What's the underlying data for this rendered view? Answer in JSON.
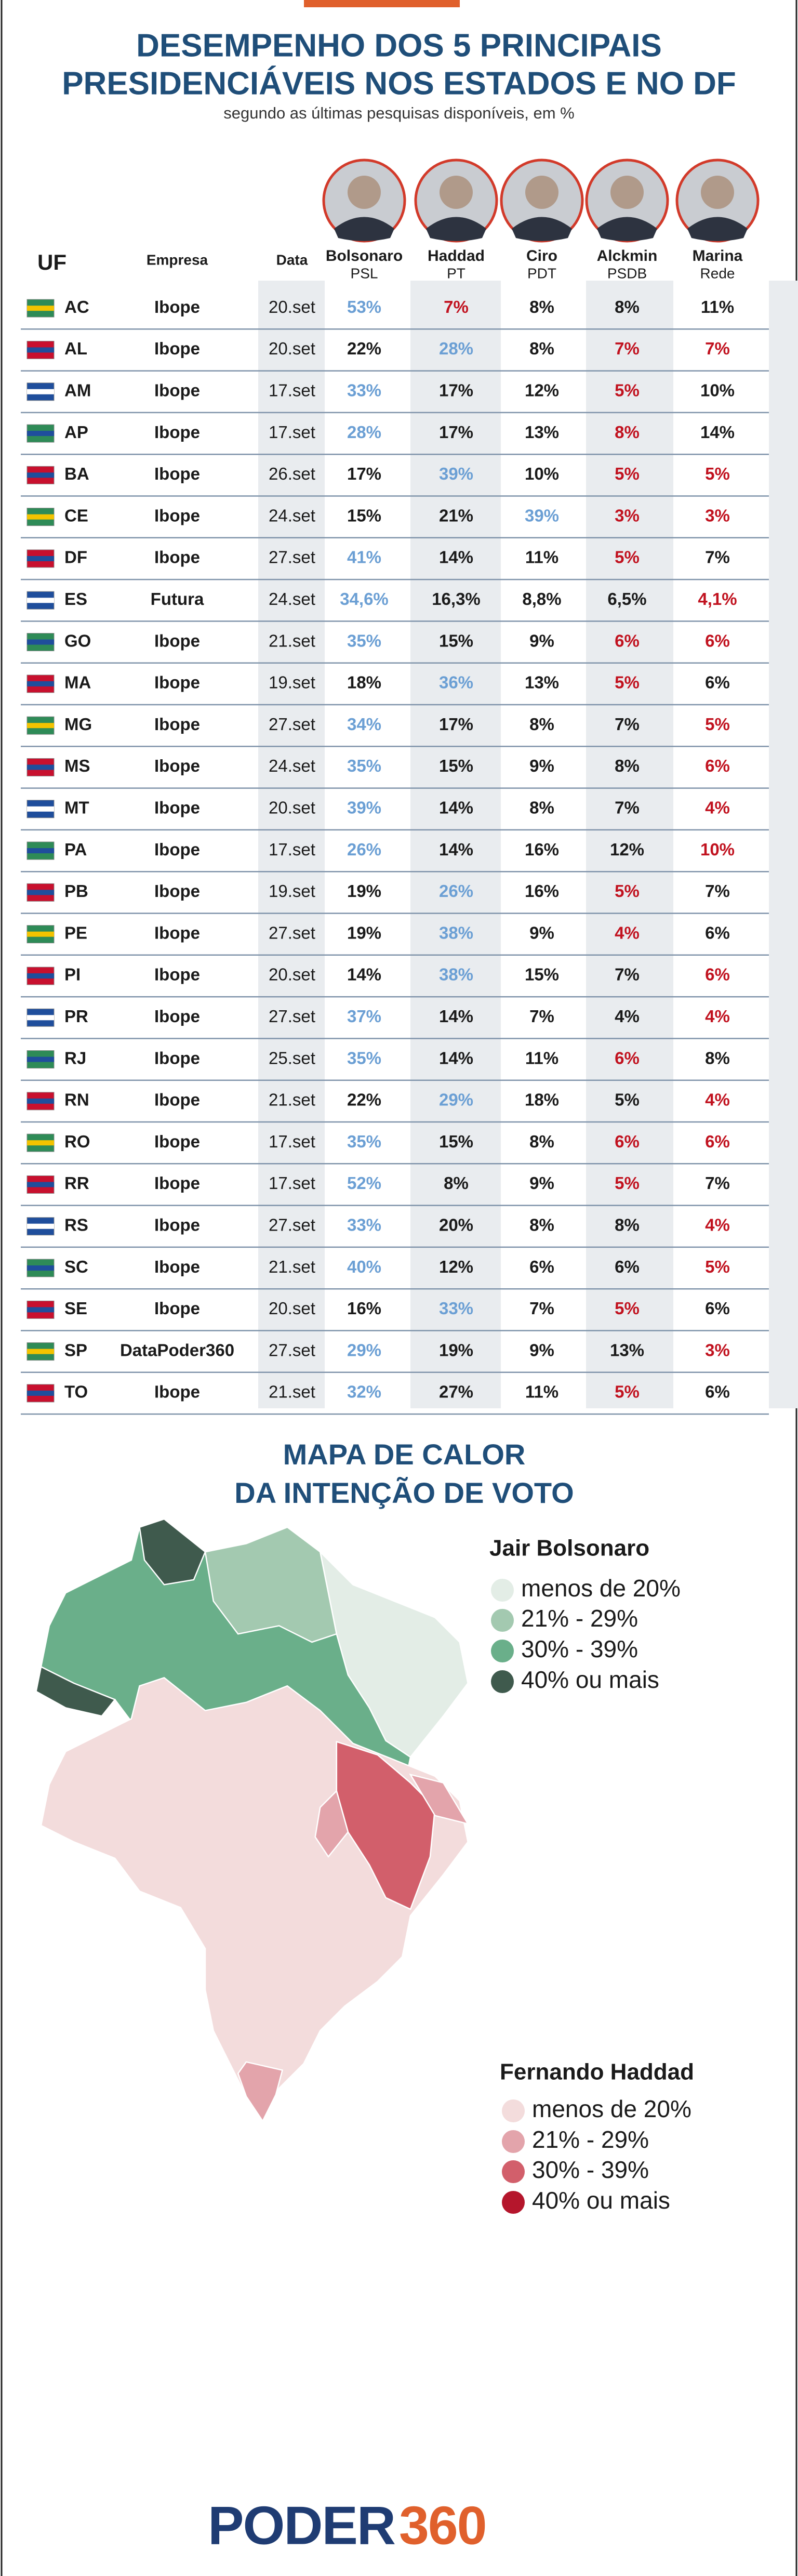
{
  "header": {
    "title_lines": [
      "DESEMPENHO DOS 5 PRINCIPAIS",
      "PRESIDENCIÁVEIS NOS ESTADOS E NO DF"
    ],
    "subtitle": "segundo as últimas pesquisas disponíveis, em %"
  },
  "table": {
    "columns": [
      "UF",
      "Empresa",
      "Data"
    ],
    "candidates": [
      {
        "name": "Bolsonaro",
        "party": "PSL"
      },
      {
        "name": "Haddad",
        "party": "PT"
      },
      {
        "name": "Ciro",
        "party": "PDT"
      },
      {
        "name": "Alckmin",
        "party": "PSDB"
      },
      {
        "name": "Marina",
        "party": "Rede"
      }
    ],
    "tone_colors": {
      "lead": "#6b9fd4",
      "low": "#c1121f",
      "base": "#1a1a1a"
    },
    "rows": [
      {
        "uf": "AC",
        "empresa": "Ibope",
        "data": "20.set",
        "values": [
          "53%",
          "7%",
          "8%",
          "8%",
          "11%"
        ],
        "lead": 0,
        "low": [
          1
        ]
      },
      {
        "uf": "AL",
        "empresa": "Ibope",
        "data": "20.set",
        "values": [
          "22%",
          "28%",
          "8%",
          "7%",
          "7%"
        ],
        "lead": 1,
        "low": [
          3,
          4
        ]
      },
      {
        "uf": "AM",
        "empresa": "Ibope",
        "data": "17.set",
        "values": [
          "33%",
          "17%",
          "12%",
          "5%",
          "10%"
        ],
        "lead": 0,
        "low": [
          3
        ]
      },
      {
        "uf": "AP",
        "empresa": "Ibope",
        "data": "17.set",
        "values": [
          "28%",
          "17%",
          "13%",
          "8%",
          "14%"
        ],
        "lead": 0,
        "low": [
          3
        ]
      },
      {
        "uf": "BA",
        "empresa": "Ibope",
        "data": "26.set",
        "values": [
          "17%",
          "39%",
          "10%",
          "5%",
          "5%"
        ],
        "lead": 1,
        "low": [
          3,
          4
        ]
      },
      {
        "uf": "CE",
        "empresa": "Ibope",
        "data": "24.set",
        "values": [
          "15%",
          "21%",
          "39%",
          "3%",
          "3%"
        ],
        "lead": 2,
        "low": [
          3,
          4
        ]
      },
      {
        "uf": "DF",
        "empresa": "Ibope",
        "data": "27.set",
        "values": [
          "41%",
          "14%",
          "11%",
          "5%",
          "7%"
        ],
        "lead": 0,
        "low": [
          3
        ]
      },
      {
        "uf": "ES",
        "empresa": "Futura",
        "data": "24.set",
        "values": [
          "34,6%",
          "16,3%",
          "8,8%",
          "6,5%",
          "4,1%"
        ],
        "lead": 0,
        "low": [
          4
        ]
      },
      {
        "uf": "GO",
        "empresa": "Ibope",
        "data": "21.set",
        "values": [
          "35%",
          "15%",
          "9%",
          "6%",
          "6%"
        ],
        "lead": 0,
        "low": [
          3,
          4
        ]
      },
      {
        "uf": "MA",
        "empresa": "Ibope",
        "data": "19.set",
        "values": [
          "18%",
          "36%",
          "13%",
          "5%",
          "6%"
        ],
        "lead": 1,
        "low": [
          3
        ]
      },
      {
        "uf": "MG",
        "empresa": "Ibope",
        "data": "27.set",
        "values": [
          "34%",
          "17%",
          "8%",
          "7%",
          "5%"
        ],
        "lead": 0,
        "low": [
          4
        ]
      },
      {
        "uf": "MS",
        "empresa": "Ibope",
        "data": "24.set",
        "values": [
          "35%",
          "15%",
          "9%",
          "8%",
          "6%"
        ],
        "lead": 0,
        "low": [
          4
        ]
      },
      {
        "uf": "MT",
        "empresa": "Ibope",
        "data": "20.set",
        "values": [
          "39%",
          "14%",
          "8%",
          "7%",
          "4%"
        ],
        "lead": 0,
        "low": [
          4
        ]
      },
      {
        "uf": "PA",
        "empresa": "Ibope",
        "data": "17.set",
        "values": [
          "26%",
          "14%",
          "16%",
          "12%",
          "10%"
        ],
        "lead": 0,
        "low": [
          4
        ]
      },
      {
        "uf": "PB",
        "empresa": "Ibope",
        "data": "19.set",
        "values": [
          "19%",
          "26%",
          "16%",
          "5%",
          "7%"
        ],
        "lead": 1,
        "low": [
          3
        ]
      },
      {
        "uf": "PE",
        "empresa": "Ibope",
        "data": "27.set",
        "values": [
          "19%",
          "38%",
          "9%",
          "4%",
          "6%"
        ],
        "lead": 1,
        "low": [
          3
        ]
      },
      {
        "uf": "PI",
        "empresa": "Ibope",
        "data": "20.set",
        "values": [
          "14%",
          "38%",
          "15%",
          "7%",
          "6%"
        ],
        "lead": 1,
        "low": [
          4
        ]
      },
      {
        "uf": "PR",
        "empresa": "Ibope",
        "data": "27.set",
        "values": [
          "37%",
          "14%",
          "7%",
          "4%",
          "4%"
        ],
        "lead": 0,
        "low": [
          4
        ]
      },
      {
        "uf": "RJ",
        "empresa": "Ibope",
        "data": "25.set",
        "values": [
          "35%",
          "14%",
          "11%",
          "6%",
          "8%"
        ],
        "lead": 0,
        "low": [
          3
        ]
      },
      {
        "uf": "RN",
        "empresa": "Ibope",
        "data": "21.set",
        "values": [
          "22%",
          "29%",
          "18%",
          "5%",
          "4%"
        ],
        "lead": 1,
        "low": [
          4
        ]
      },
      {
        "uf": "RO",
        "empresa": "Ibope",
        "data": "17.set",
        "values": [
          "35%",
          "15%",
          "8%",
          "6%",
          "6%"
        ],
        "lead": 0,
        "low": [
          3,
          4
        ]
      },
      {
        "uf": "RR",
        "empresa": "Ibope",
        "data": "17.set",
        "values": [
          "52%",
          "8%",
          "9%",
          "5%",
          "7%"
        ],
        "lead": 0,
        "low": [
          3
        ]
      },
      {
        "uf": "RS",
        "empresa": "Ibope",
        "data": "27.set",
        "values": [
          "33%",
          "20%",
          "8%",
          "8%",
          "4%"
        ],
        "lead": 0,
        "low": [
          4
        ]
      },
      {
        "uf": "SC",
        "empresa": "Ibope",
        "data": "21.set",
        "values": [
          "40%",
          "12%",
          "6%",
          "6%",
          "5%"
        ],
        "lead": 0,
        "low": [
          4
        ]
      },
      {
        "uf": "SE",
        "empresa": "Ibope",
        "data": "20.set",
        "values": [
          "16%",
          "33%",
          "7%",
          "5%",
          "6%"
        ],
        "lead": 1,
        "low": [
          3
        ]
      },
      {
        "uf": "SP",
        "empresa": "DataPoder360",
        "data": "27.set",
        "values": [
          "29%",
          "19%",
          "9%",
          "13%",
          "3%"
        ],
        "lead": 0,
        "low": [
          4
        ]
      },
      {
        "uf": "TO",
        "empresa": "Ibope",
        "data": "21.set",
        "values": [
          "32%",
          "27%",
          "11%",
          "5%",
          "6%"
        ],
        "lead": 0,
        "low": [
          3
        ]
      }
    ]
  },
  "maps": {
    "title_lines": [
      "MAPA DE CALOR",
      "DA INTENÇÃO DE VOTO"
    ],
    "legends": [
      {
        "name": "Jair Bolsonaro",
        "items": [
          "menos de 20%",
          "21% - 29%",
          "30% - 39%",
          "40% ou mais"
        ],
        "colors": [
          "#e3ede6",
          "#a3c9b0",
          "#6aaf8a",
          "#3f5a4d"
        ]
      },
      {
        "name": "Fernando Haddad",
        "items": [
          "menos de 20%",
          "21% - 29%",
          "30% - 39%",
          "40% ou mais"
        ],
        "colors": [
          "#f3dcdc",
          "#e3a4ab",
          "#d25f6b",
          "#b5162c"
        ]
      }
    ]
  },
  "footer": {
    "logo": [
      "PODER",
      "360"
    ]
  }
}
